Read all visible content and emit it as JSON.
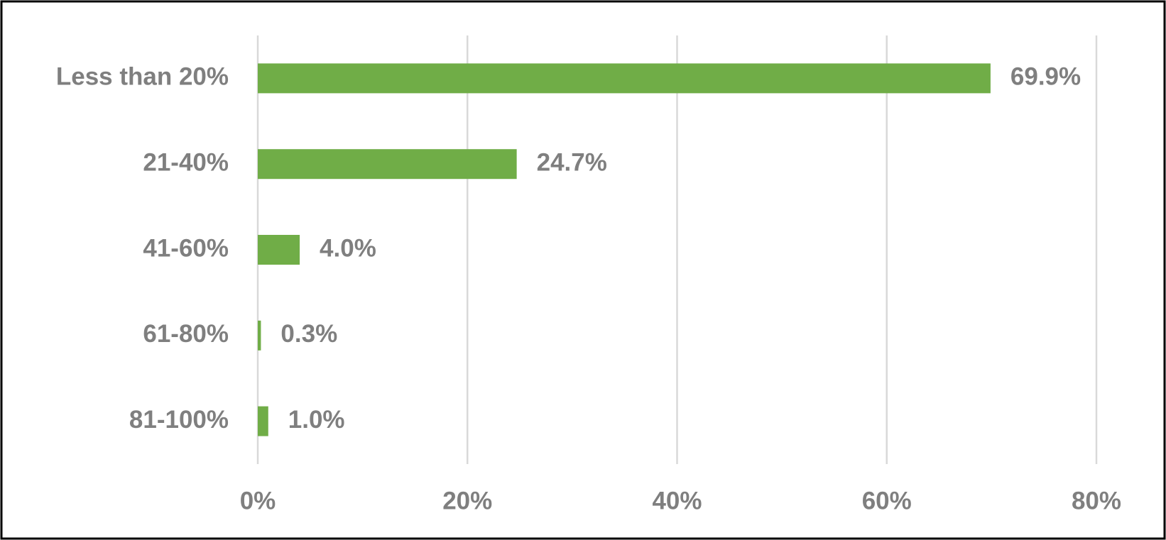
{
  "chart_data": {
    "type": "bar",
    "orientation": "horizontal",
    "categories": [
      "Less than 20%",
      "21-40%",
      "41-60%",
      "61-80%",
      "81-100%"
    ],
    "values": [
      69.9,
      24.7,
      4.0,
      0.3,
      1.0
    ],
    "value_labels": [
      "69.9%",
      "24.7%",
      "4.0%",
      "0.3%",
      "1.0%"
    ],
    "color": "#70ad47",
    "xlim": [
      0,
      80
    ],
    "xticks": [
      {
        "value": 0,
        "label": "0%"
      },
      {
        "value": 20,
        "label": "20%"
      },
      {
        "value": 40,
        "label": "40%"
      },
      {
        "value": 60,
        "label": "60%"
      },
      {
        "value": 80,
        "label": "80%"
      }
    ],
    "grid": true
  }
}
